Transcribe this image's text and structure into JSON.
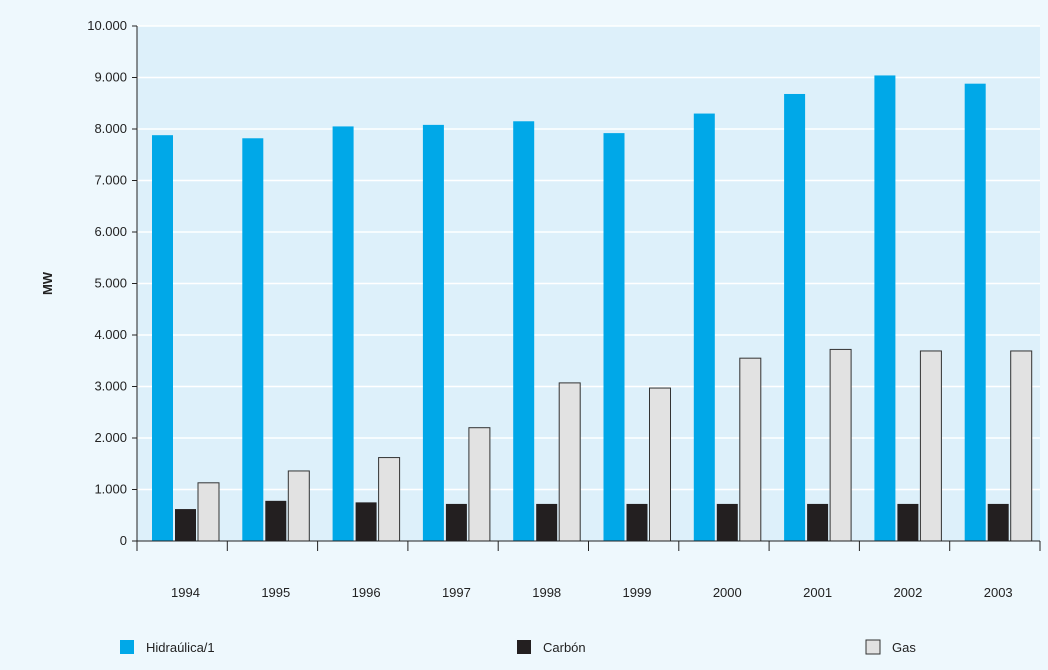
{
  "chart_data": {
    "type": "bar",
    "ylabel": "MW",
    "xlabel": "",
    "ylim": [
      0,
      10000
    ],
    "yticks": [
      "0",
      "1.000",
      "2.000",
      "3.000",
      "4.000",
      "5.000",
      "6.000",
      "7.000",
      "8.000",
      "9.000",
      "10.000"
    ],
    "categories": [
      "1994",
      "1995",
      "1996",
      "1997",
      "1998",
      "1999",
      "2000",
      "2001",
      "2002",
      "2003"
    ],
    "grid": true,
    "legend_position": "bottom",
    "series": [
      {
        "name": "Hidraúlica/1",
        "color": "#00a8e8",
        "values": [
          7880,
          7820,
          8050,
          8080,
          8150,
          7920,
          8300,
          8680,
          9040,
          8880
        ]
      },
      {
        "name": "Carbón",
        "color": "#231f20",
        "values": [
          620,
          780,
          750,
          720,
          720,
          720,
          720,
          720,
          720,
          720
        ]
      },
      {
        "name": "Gas",
        "color": "#e2e2e2",
        "values": [
          1130,
          1360,
          1620,
          2200,
          3070,
          2970,
          3550,
          3720,
          3690,
          3690
        ]
      }
    ]
  },
  "colors": {
    "plot_background": "#ddf0fa",
    "page_background": "#eef8fd",
    "gridline": "#ffffff",
    "axis": "#222222"
  }
}
